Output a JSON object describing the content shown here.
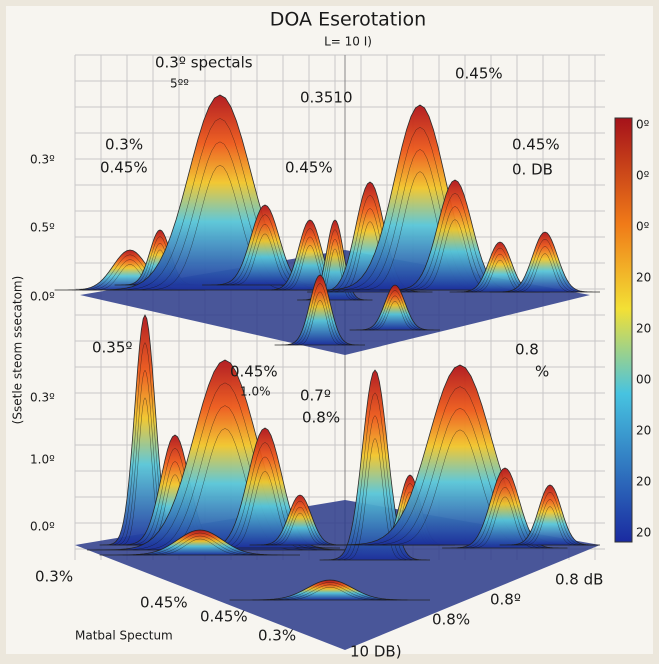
{
  "header": {
    "title": "DOA Eserotation",
    "subtitle": "L= 10 I)"
  },
  "annotations": [
    "0.3º spectals",
    "5ºº",
    "0.45%",
    "0.3510",
    "0.3%",
    "0.45%",
    "0.45%",
    "0.45%",
    "0. DB",
    "0.35º",
    "0.45%",
    "1.0%",
    "0.7º",
    "0.8%",
    "0.8",
    "%"
  ],
  "y_axis": {
    "title": "(Ssetle steom ssecatom)",
    "upper_ticks": [
      "0.3º",
      "0.5º",
      "0.0º"
    ],
    "lower_ticks": [
      "0.3º",
      "1.0º",
      "0.0º"
    ]
  },
  "x_labels": [
    "0.3%",
    "0.45%",
    "0.45%",
    "0.3%",
    "0.8%",
    "0.8º",
    "0.8 dB"
  ],
  "footer": {
    "label": "Matbal Spectum",
    "unit": "10 DB)"
  },
  "colorbar": {
    "labels": [
      "0º",
      "0º",
      "0º",
      "20",
      "20",
      "00",
      "20",
      "20",
      "20"
    ]
  }
}
